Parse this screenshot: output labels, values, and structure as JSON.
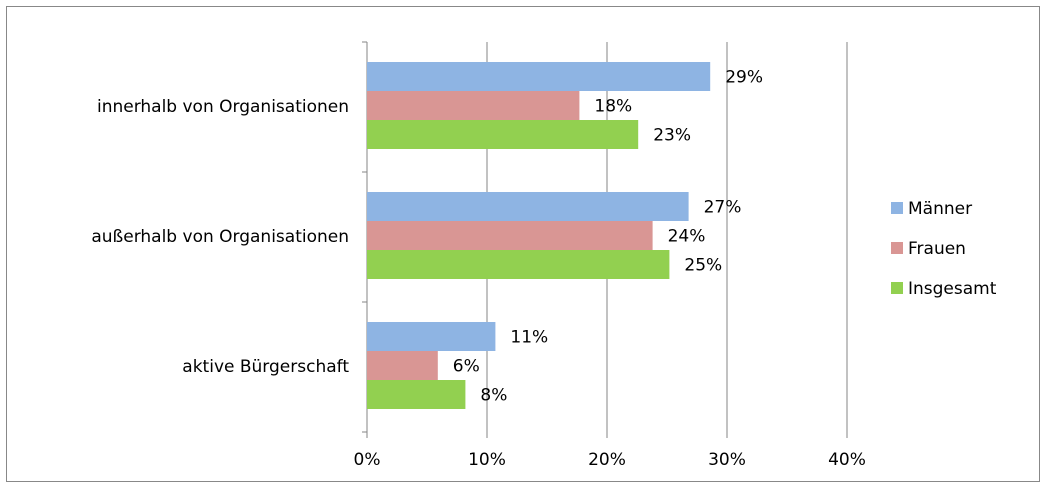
{
  "chart_data": {
    "type": "bar",
    "orientation": "horizontal",
    "categories": [
      "innerhalb von Organisationen",
      "außerhalb von Organisationen",
      "aktive Bürgerschaft"
    ],
    "series": [
      {
        "name": "Männer",
        "color": "#8eb4e3",
        "values": [
          28.6,
          26.8,
          10.7
        ],
        "value_labels": [
          "29%",
          "27%",
          "11%"
        ]
      },
      {
        "name": "Frauen",
        "color": "#d99694",
        "values": [
          17.7,
          23.8,
          5.9
        ],
        "value_labels": [
          "18%",
          "24%",
          "6%"
        ]
      },
      {
        "name": "Insgesamt",
        "color": "#92d050",
        "values": [
          22.6,
          25.2,
          8.2
        ],
        "value_labels": [
          "23%",
          "25%",
          "8%"
        ]
      }
    ],
    "xlim": [
      0,
      40
    ],
    "xticks": [
      {
        "value": 0,
        "label": "0%"
      },
      {
        "value": 10,
        "label": "10%"
      },
      {
        "value": 20,
        "label": "20%"
      },
      {
        "value": 30,
        "label": "30%"
      },
      {
        "value": 40,
        "label": "40%"
      }
    ],
    "grid": true,
    "legend": "right"
  }
}
